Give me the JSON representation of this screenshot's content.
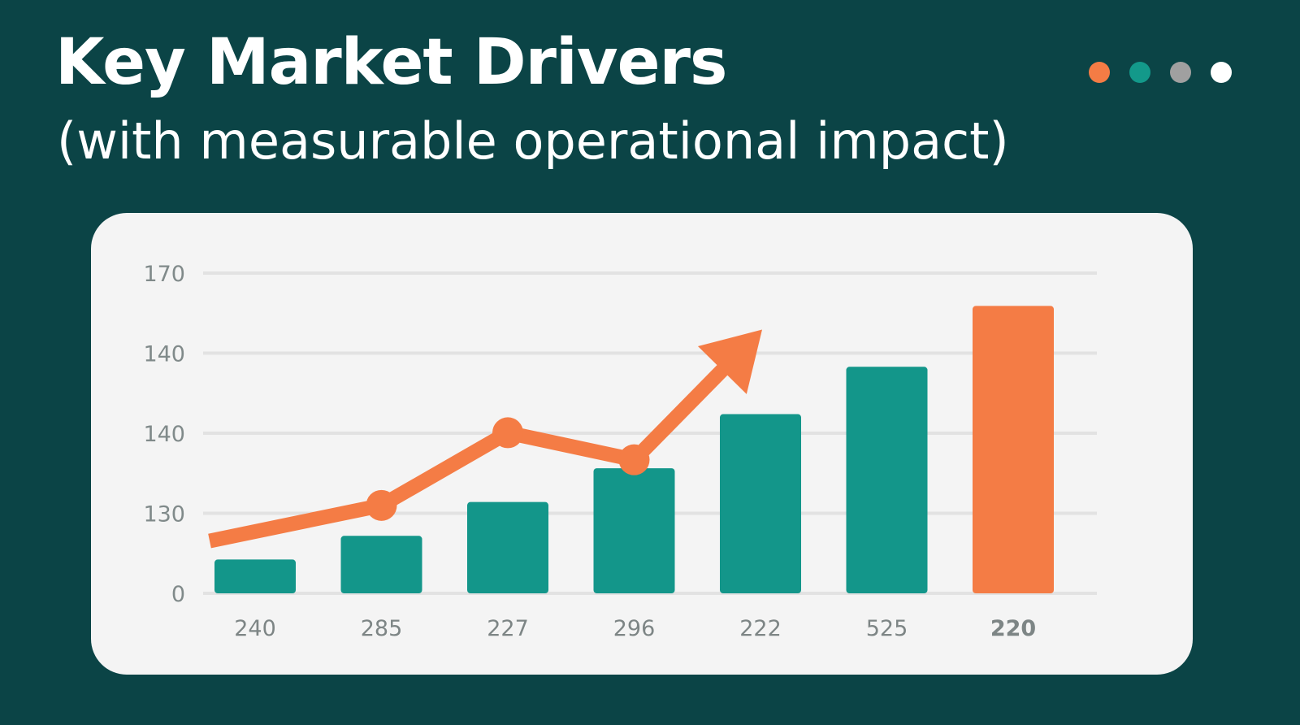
{
  "header": {
    "title": "Key Market Drivers",
    "subtitle": "(with measurable operational impact)"
  },
  "page_dots": [
    {
      "name": "dot-orange",
      "color": "#f47c45"
    },
    {
      "name": "dot-teal",
      "color": "#13998a"
    },
    {
      "name": "dot-gray",
      "color": "#a0a0a0"
    },
    {
      "name": "dot-white",
      "color": "#ffffff"
    }
  ],
  "colors": {
    "background": "#0b4446",
    "bar": "#13968a",
    "highlight": "#f47c45",
    "grid": "#e2e2e2"
  },
  "chart_data": {
    "type": "bar",
    "categories": [
      "240",
      "285",
      "227",
      "296",
      "222",
      "525",
      "220"
    ],
    "y_tick_labels": [
      "170",
      "140",
      "140",
      "130",
      "0"
    ],
    "values": [
      10,
      17,
      27,
      37,
      53,
      67,
      85
    ],
    "ylim": [
      0,
      100
    ],
    "highlight_index": 6,
    "trend_line": {
      "values": [
        17.5,
        26,
        47.5,
        39.5
      ],
      "arrow_to": 78,
      "color": "#f47c45"
    },
    "grid": true,
    "legend": "none"
  }
}
